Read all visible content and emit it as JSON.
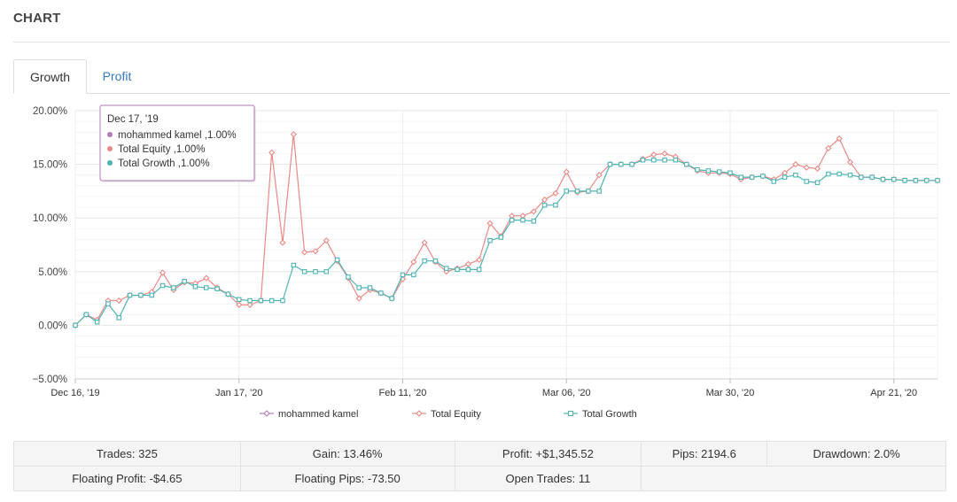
{
  "header": {
    "title": "CHART"
  },
  "tabs": [
    {
      "label": "Growth",
      "active": true
    },
    {
      "label": "Profit",
      "active": false
    }
  ],
  "chart_data": {
    "type": "line",
    "y_ticks": [
      "20.00%",
      "15.00%",
      "10.00%",
      "5.00%",
      "0.00%",
      "−5.00%"
    ],
    "ylim": [
      -5,
      20
    ],
    "x_ticks": [
      {
        "label": "Dec 16, '19",
        "index": 0
      },
      {
        "label": "Jan 17, '20",
        "index": 15
      },
      {
        "label": "Feb 11, '20",
        "index": 30
      },
      {
        "label": "Mar 06, '20",
        "index": 45
      },
      {
        "label": "Mar 30, '20",
        "index": 60
      },
      {
        "label": "Apr 21, '20",
        "index": 75
      }
    ],
    "x_count": 80,
    "grid": true,
    "legend_position": "bottom",
    "series": [
      {
        "name": "mohammed kamel",
        "color": "#b37ab8",
        "marker": "diamond",
        "values": []
      },
      {
        "name": "Total Equity",
        "color": "#e88a86",
        "marker": "diamond",
        "values": [
          0.0,
          1.0,
          0.5,
          2.3,
          2.3,
          2.8,
          2.8,
          3.1,
          4.9,
          3.3,
          4.0,
          3.9,
          4.4,
          3.5,
          2.9,
          1.9,
          1.9,
          2.3,
          16.1,
          7.7,
          17.8,
          6.8,
          6.9,
          7.9,
          6.0,
          4.4,
          2.5,
          3.3,
          3.0,
          2.5,
          4.3,
          5.9,
          7.7,
          5.9,
          5.0,
          5.3,
          5.7,
          6.1,
          9.5,
          8.3,
          10.2,
          10.2,
          10.6,
          11.7,
          12.3,
          14.3,
          12.4,
          12.5,
          14.0,
          15.0,
          15.0,
          15.0,
          15.5,
          15.9,
          16.0,
          15.7,
          15.0,
          14.4,
          14.2,
          14.2,
          14.1,
          13.6,
          13.8,
          13.9,
          13.6,
          14.2,
          15.0,
          14.7,
          14.6,
          16.5,
          17.4,
          15.2,
          13.8,
          13.8,
          13.6,
          13.6,
          13.5,
          13.5,
          13.5,
          13.5
        ]
      },
      {
        "name": "Total Growth",
        "color": "#4fb3b3",
        "marker": "square",
        "values": [
          0.0,
          1.0,
          0.3,
          2.0,
          0.7,
          2.8,
          2.8,
          2.8,
          3.7,
          3.5,
          4.1,
          3.6,
          3.5,
          3.4,
          2.9,
          2.4,
          2.3,
          2.3,
          2.3,
          2.3,
          5.6,
          5.0,
          5.0,
          5.0,
          6.1,
          4.5,
          3.5,
          3.5,
          3.0,
          2.5,
          4.7,
          4.7,
          6.0,
          6.0,
          5.3,
          5.2,
          5.2,
          5.2,
          7.9,
          8.2,
          9.8,
          9.8,
          9.7,
          11.2,
          11.2,
          12.5,
          12.5,
          12.5,
          12.5,
          15.0,
          15.0,
          15.0,
          15.4,
          15.4,
          15.4,
          15.4,
          15.0,
          14.5,
          14.4,
          14.3,
          14.2,
          13.8,
          13.8,
          13.9,
          13.4,
          13.8,
          14.0,
          13.4,
          13.3,
          14.1,
          14.1,
          14.0,
          13.8,
          13.8,
          13.6,
          13.6,
          13.5,
          13.5,
          13.5,
          13.5
        ]
      }
    ],
    "tooltip": {
      "date": "Dec 17, '19",
      "rows": [
        {
          "text": "mohammed kamel ,1.00%",
          "color": "#b37ab8"
        },
        {
          "text": "Total Equity ,1.00%",
          "color": "#e88a86"
        },
        {
          "text": "Total Growth ,1.00%",
          "color": "#4fb3b3"
        }
      ]
    }
  },
  "stats": {
    "row1": [
      "Trades: 325",
      "Gain: 13.46%",
      "Profit: +$1,345.52",
      "Pips: 2194.6",
      "Drawdown: 2.0%"
    ],
    "row2": [
      "Floating Profit: -$4.65",
      "Floating Pips: -73.50",
      "Open Trades: 11",
      "",
      ""
    ]
  }
}
